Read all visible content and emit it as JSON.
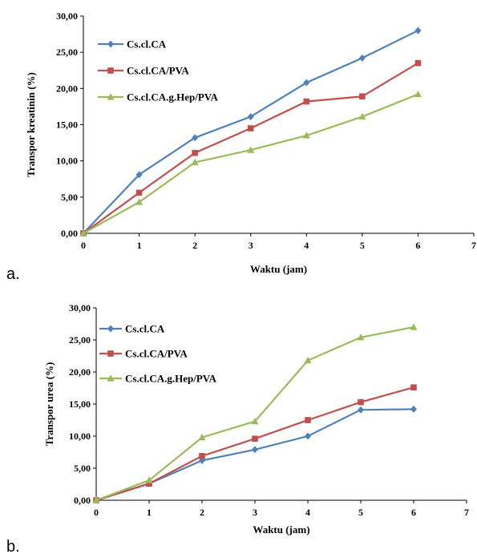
{
  "chart_data": [
    {
      "type": "line",
      "panel_label": "a.",
      "xlabel": "Waktu (jam)",
      "ylabel": "Transpor kreatinin (%)",
      "xlim": [
        0,
        7
      ],
      "ylim": [
        0,
        30
      ],
      "x_ticks": [
        "0",
        "1",
        "2",
        "3",
        "4",
        "5",
        "6",
        "7"
      ],
      "y_ticks": [
        "0,00",
        "5,00",
        "10,00",
        "15,00",
        "20,00",
        "25,00",
        "30,00"
      ],
      "grid": false,
      "legend_position": "top-left",
      "x": [
        0,
        1,
        2,
        3,
        4,
        5,
        6
      ],
      "series": [
        {
          "name": "Cs.cl.CA",
          "color": "#4F81BD",
          "marker": "diamond",
          "values": [
            0,
            8.1,
            13.2,
            16.1,
            20.8,
            24.2,
            28.0
          ]
        },
        {
          "name": "Cs.cl.CA/PVA",
          "color": "#C0504D",
          "marker": "square",
          "values": [
            0,
            5.6,
            11.1,
            14.5,
            18.2,
            18.9,
            23.5
          ]
        },
        {
          "name": "Cs.cl.CA.g.Hep/PVA",
          "color": "#9BBB59",
          "marker": "triangle",
          "values": [
            0,
            4.3,
            9.8,
            11.5,
            13.5,
            16.1,
            19.2
          ]
        }
      ]
    },
    {
      "type": "line",
      "panel_label": "b.",
      "xlabel": "Waktu (jam)",
      "ylabel": "Transpor urea (%)",
      "xlim": [
        0,
        7
      ],
      "ylim": [
        0,
        30
      ],
      "x_ticks": [
        "0",
        "1",
        "2",
        "3",
        "4",
        "5",
        "6",
        "7"
      ],
      "y_ticks": [
        "0,00",
        "5,00",
        "10,00",
        "15,00",
        "20,00",
        "25,00",
        "30,00"
      ],
      "grid": false,
      "legend_position": "top-left",
      "x": [
        0,
        1,
        2,
        3,
        4,
        5,
        6
      ],
      "series": [
        {
          "name": "Cs.cl.CA",
          "color": "#4F81BD",
          "marker": "diamond",
          "values": [
            0,
            2.6,
            6.2,
            7.9,
            10.0,
            14.1,
            14.2
          ]
        },
        {
          "name": "Cs.cl.CA/PVA",
          "color": "#C0504D",
          "marker": "square",
          "values": [
            0,
            2.6,
            6.9,
            9.6,
            12.5,
            15.3,
            17.6
          ]
        },
        {
          "name": "Cs.cl.CA.g.Hep/PVA",
          "color": "#9BBB59",
          "marker": "triangle",
          "values": [
            0,
            3.1,
            9.8,
            12.3,
            21.8,
            25.4,
            27.0
          ]
        }
      ]
    }
  ]
}
